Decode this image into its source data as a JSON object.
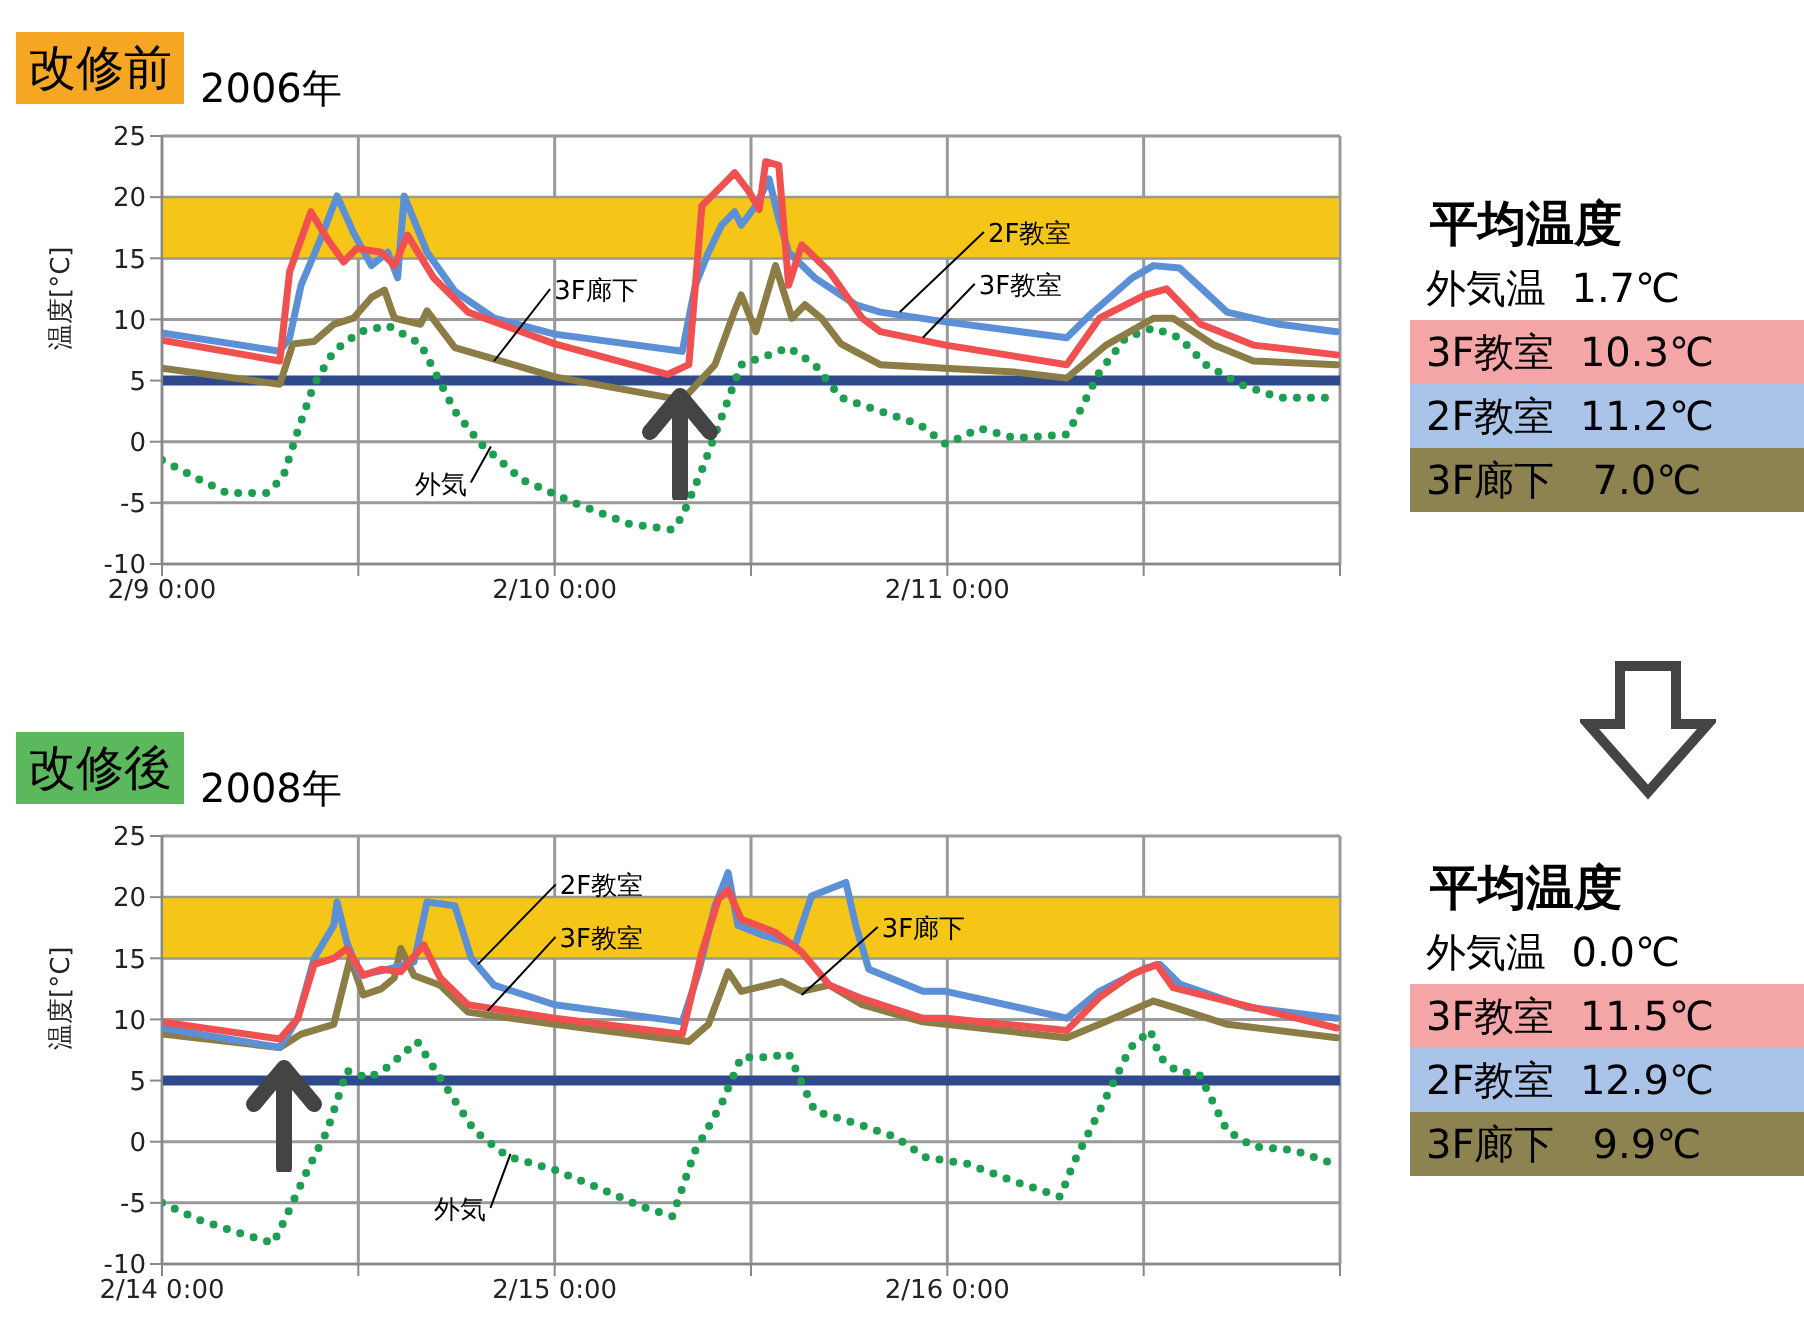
{
  "chart_data": [
    {
      "type": "line",
      "title": "改修前",
      "subtitle": "2006年",
      "ylabel": "温度[°C]",
      "xlim": [
        "2006-02-09T00:00",
        "2006-02-12T00:00"
      ],
      "xticks": [
        {
          "value": "2006-02-09T00:00",
          "label": "2/9 0:00"
        },
        {
          "value": "2006-02-09T12:00",
          "label": null
        },
        {
          "value": "2006-02-10T00:00",
          "label": "2/10 0:00"
        },
        {
          "value": "2006-02-10T12:00",
          "label": null
        },
        {
          "value": "2006-02-11T00:00",
          "label": "2/11 0:00"
        },
        {
          "value": "2006-02-11T12:00",
          "label": null
        },
        {
          "value": "2006-02-12T00:00",
          "label": null
        }
      ],
      "ylim": [
        -10,
        25
      ],
      "yticks": [
        -10,
        -5,
        0,
        5,
        10,
        15,
        20,
        25
      ],
      "grid": true,
      "legend": false,
      "marker": "none",
      "bands": [
        {
          "axis": "y",
          "from": 15,
          "to": 20,
          "color": "#f5c518"
        }
      ],
      "ref_lines": [
        {
          "axis": "y",
          "value": 5,
          "color": "#2e4a8c"
        }
      ],
      "series": [
        {
          "color": "#1e9e50",
          "line_style": "dotted",
          "x": [
            "2006-02-09T00:00",
            "2006-02-09T02:18",
            "2006-02-09T04:00",
            "2006-02-09T06:24",
            "2006-02-09T07:24",
            "2006-02-09T08:18",
            "2006-02-09T09:18",
            "2006-02-09T10:30",
            "2006-02-09T12:06",
            "2006-02-09T13:48",
            "2006-02-09T15:48",
            "2006-02-09T17:54",
            "2006-02-09T19:30",
            "2006-02-09T22:00",
            "2006-02-10T01:12",
            "2006-02-10T04:30",
            "2006-02-10T07:12",
            "2006-02-10T07:48",
            "2006-02-10T09:00",
            "2006-02-10T10:12",
            "2006-02-10T11:24",
            "2006-02-10T13:06",
            "2006-02-10T14:18",
            "2006-02-10T15:54",
            "2006-02-10T17:30",
            "2006-02-10T19:54",
            "2006-02-10T22:18",
            "2006-02-10T23:54",
            "2006-02-11T02:00",
            "2006-02-11T04:06",
            "2006-02-11T07:18",
            "2006-02-11T08:06",
            "2006-02-11T09:18",
            "2006-02-11T10:54",
            "2006-02-11T12:36",
            "2006-02-11T14:12",
            "2006-02-11T15:48",
            "2006-02-11T17:54",
            "2006-02-11T20:18",
            "2006-02-11T23:36"
          ],
          "values": [
            -1.5,
            -3.1,
            -4.2,
            -4.2,
            -2.9,
            0.9,
            4.7,
            7.4,
            9,
            9.5,
            8,
            2.5,
            -0.2,
            -3.1,
            -5,
            -6.7,
            -7.2,
            -6.1,
            -2.3,
            2,
            6.3,
            7.1,
            7.7,
            6.3,
            3.6,
            2.5,
            1.4,
            -0.2,
            1.1,
            0.3,
            0.6,
            2.5,
            5.7,
            8.5,
            9.3,
            8.5,
            6.3,
            4.7,
            3.6,
            3.6
          ]
        },
        {
          "color": "#8b7d45",
          "line_style": "solid",
          "x": [
            "2006-02-09T00:00",
            "2006-02-09T07:12",
            "2006-02-09T08:00",
            "2006-02-09T09:18",
            "2006-02-09T10:30",
            "2006-02-09T11:42",
            "2006-02-09T12:48",
            "2006-02-09T13:36",
            "2006-02-09T14:12",
            "2006-02-09T15:48",
            "2006-02-09T16:12",
            "2006-02-09T17:54",
            "2006-02-10T00:00",
            "2006-02-10T07:48",
            "2006-02-10T09:48",
            "2006-02-10T11:00",
            "2006-02-10T11:24",
            "2006-02-10T12:18",
            "2006-02-10T13:30",
            "2006-02-10T14:30",
            "2006-02-10T15:18",
            "2006-02-10T16:18",
            "2006-02-10T17:30",
            "2006-02-10T19:54",
            "2006-02-11T04:06",
            "2006-02-11T07:18",
            "2006-02-11T09:42",
            "2006-02-11T12:36",
            "2006-02-11T13:48",
            "2006-02-11T16:18",
            "2006-02-11T18:42",
            "2006-02-11T23:48"
          ],
          "values": [
            6,
            4.7,
            8,
            8.2,
            9.6,
            10.1,
            11.8,
            12.4,
            10.1,
            9.6,
            10.7,
            7.7,
            5.3,
            3.4,
            6.3,
            10.7,
            12,
            9,
            14.4,
            10.1,
            11.2,
            10.1,
            8,
            6.3,
            5.7,
            5.2,
            7.9,
            10.1,
            10.1,
            7.9,
            6.6,
            6.3
          ]
        },
        {
          "color": "#5b8fd6",
          "line_style": "solid",
          "x": [
            "2006-02-09T00:00",
            "2006-02-09T07:12",
            "2006-02-09T07:48",
            "2006-02-09T08:30",
            "2006-02-09T09:42",
            "2006-02-09T10:42",
            "2006-02-09T11:42",
            "2006-02-09T12:48",
            "2006-02-09T13:48",
            "2006-02-09T14:24",
            "2006-02-09T14:48",
            "2006-02-09T16:12",
            "2006-02-09T17:54",
            "2006-02-09T20:18",
            "2006-02-10T00:00",
            "2006-02-10T07:48",
            "2006-02-10T08:36",
            "2006-02-10T09:24",
            "2006-02-10T10:12",
            "2006-02-10T11:00",
            "2006-02-10T11:24",
            "2006-02-10T12:18",
            "2006-02-10T13:06",
            "2006-02-10T13:42",
            "2006-02-10T14:18",
            "2006-02-10T15:54",
            "2006-02-10T18:24",
            "2006-02-10T19:54",
            "2006-02-10T23:54",
            "2006-02-11T07:18",
            "2006-02-11T08:54",
            "2006-02-11T11:18",
            "2006-02-11T12:36",
            "2006-02-11T14:12",
            "2006-02-11T17:06",
            "2006-02-11T20:18",
            "2006-02-11T23:48"
          ],
          "values": [
            8.9,
            7.4,
            8.5,
            12.8,
            16.6,
            20.1,
            17.1,
            14.4,
            15.5,
            13.4,
            20.1,
            15.5,
            12.3,
            10.1,
            8.8,
            7.4,
            12.8,
            15.5,
            17.7,
            18.8,
            17.7,
            19.3,
            21.5,
            18.2,
            15.5,
            13.4,
            11.2,
            10.6,
            9.8,
            8.5,
            10.6,
            13.4,
            14.4,
            14.2,
            10.6,
            9.6,
            9
          ]
        },
        {
          "color": "#f0504f",
          "line_style": "solid",
          "x": [
            "2006-02-09T00:00",
            "2006-02-09T07:12",
            "2006-02-09T07:48",
            "2006-02-09T09:06",
            "2006-02-09T10:06",
            "2006-02-09T11:06",
            "2006-02-09T11:54",
            "2006-02-09T13:24",
            "2006-02-09T14:12",
            "2006-02-09T15:00",
            "2006-02-09T16:36",
            "2006-02-09T18:42",
            "2006-02-10T00:00",
            "2006-02-10T06:54",
            "2006-02-10T08:12",
            "2006-02-10T09:00",
            "2006-02-10T10:12",
            "2006-02-10T11:00",
            "2006-02-10T11:54",
            "2006-02-10T12:30",
            "2006-02-10T12:54",
            "2006-02-10T13:42",
            "2006-02-10T14:18",
            "2006-02-10T15:06",
            "2006-02-10T16:48",
            "2006-02-10T18:48",
            "2006-02-10T19:54",
            "2006-02-10T23:54",
            "2006-02-11T07:18",
            "2006-02-11T09:18",
            "2006-02-11T12:06",
            "2006-02-11T13:24",
            "2006-02-11T15:30",
            "2006-02-11T18:42",
            "2006-02-11T23:48"
          ],
          "values": [
            8.3,
            6.6,
            13.9,
            18.8,
            16.6,
            14.7,
            15.8,
            15.5,
            14.4,
            16.9,
            13.4,
            10.6,
            8,
            5.5,
            6.3,
            19.3,
            20.9,
            22,
            20.4,
            19,
            22.9,
            22.6,
            12.8,
            16.1,
            13.9,
            10.1,
            9,
            7.9,
            6.3,
            10.1,
            12,
            12.5,
            9.6,
            7.9,
            7.1
          ]
        }
      ],
      "annotations": [
        {
          "text": "3F廊下",
          "x": "2006-02-09T20:18",
          "y": 6.6
        },
        {
          "text": "外気",
          "x": "2006-02-09T20:06",
          "y": -0.4
        },
        {
          "text": "2F教室",
          "x": "2006-02-10T21:06",
          "y": 10.6
        },
        {
          "text": "3F教室",
          "x": "2006-02-10T22:30",
          "y": 8.5
        }
      ]
    },
    {
      "type": "other",
      "title": "平均温度",
      "annotations": [
        "外気温  1.7℃",
        "3F教室  10.3℃",
        "2F教室  11.2℃",
        "3F廊下   7.0℃"
      ],
      "colors": [
        "#ffffff",
        "#f4a6a6",
        "#a9c4e8",
        "#8c8350"
      ]
    },
    {
      "type": "line",
      "title": "改修後",
      "subtitle": "2008年",
      "ylabel": "温度[°C]",
      "xlim": [
        "2008-02-14T00:00",
        "2008-02-17T00:00"
      ],
      "xticks": [
        {
          "value": "2008-02-14T00:00",
          "label": "2/14 0:00"
        },
        {
          "value": "2008-02-14T12:00",
          "label": null
        },
        {
          "value": "2008-02-15T00:00",
          "label": "2/15 0:00"
        },
        {
          "value": "2008-02-15T12:00",
          "label": null
        },
        {
          "value": "2008-02-16T00:00",
          "label": "2/16 0:00"
        },
        {
          "value": "2008-02-16T12:00",
          "label": null
        },
        {
          "value": "2008-02-17T00:00",
          "label": null
        }
      ],
      "ylim": [
        -10,
        25
      ],
      "yticks": [
        -10,
        -5,
        0,
        5,
        10,
        15,
        20,
        25
      ],
      "grid": true,
      "legend": false,
      "marker": "none",
      "bands": [
        {
          "axis": "y",
          "from": 15,
          "to": 20,
          "color": "#f5c518"
        }
      ],
      "ref_lines": [
        {
          "axis": "y",
          "value": 5,
          "color": "#2e4a8c"
        }
      ],
      "series": [
        {
          "color": "#1e9e50",
          "line_style": "dotted",
          "x": [
            "2008-02-14T00:00",
            "2008-02-14T02:18",
            "2008-02-14T04:48",
            "2008-02-14T06:48",
            "2008-02-14T07:36",
            "2008-02-14T08:54",
            "2008-02-14T10:06",
            "2008-02-14T11:18",
            "2008-02-14T12:36",
            "2008-02-14T13:48",
            "2008-02-14T15:36",
            "2008-02-14T17:00",
            "2008-02-14T19:06",
            "2008-02-14T21:06",
            "2008-02-15T00:00",
            "2008-02-15T02:54",
            "2008-02-15T05:18",
            "2008-02-15T07:12",
            "2008-02-15T08:36",
            "2008-02-15T10:12",
            "2008-02-15T11:24",
            "2008-02-15T13:06",
            "2008-02-15T14:18",
            "2008-02-15T15:54",
            "2008-02-15T18:24",
            "2008-02-15T20:48",
            "2008-02-15T22:42",
            "2008-02-16T01:12",
            "2008-02-16T04:00",
            "2008-02-16T06:54",
            "2008-02-16T07:42",
            "2008-02-16T09:42",
            "2008-02-16T11:12",
            "2008-02-16T12:24",
            "2008-02-16T13:00",
            "2008-02-16T14:00",
            "2008-02-16T15:24",
            "2008-02-16T17:06",
            "2008-02-16T18:42",
            "2008-02-16T21:12",
            "2008-02-16T23:36"
          ],
          "values": [
            -5,
            -6.4,
            -7.5,
            -8.3,
            -6.1,
            -2.3,
            0.9,
            5.8,
            5.2,
            6.1,
            8.2,
            5.2,
            0.9,
            -1.2,
            -2.3,
            -3.9,
            -5.3,
            -6.1,
            -0.7,
            3.1,
            6.9,
            6.9,
            7.2,
            2.5,
            1.5,
            0.4,
            -1.3,
            -1.8,
            -3.2,
            -4.5,
            -1.8,
            3.6,
            7.7,
            9.1,
            6.9,
            5.8,
            5.5,
            0.9,
            -0.4,
            -0.7,
            -1.8
          ]
        },
        {
          "color": "#8b7d45",
          "line_style": "solid",
          "x": [
            "2008-02-14T00:00",
            "2008-02-14T07:12",
            "2008-02-14T08:30",
            "2008-02-14T10:30",
            "2008-02-14T11:30",
            "2008-02-14T12:18",
            "2008-02-14T13:24",
            "2008-02-14T14:12",
            "2008-02-14T14:36",
            "2008-02-14T15:24",
            "2008-02-14T17:00",
            "2008-02-14T18:42",
            "2008-02-15T00:00",
            "2008-02-15T08:12",
            "2008-02-15T09:24",
            "2008-02-15T10:36",
            "2008-02-15T11:24",
            "2008-02-15T13:54",
            "2008-02-15T15:06",
            "2008-02-15T16:48",
            "2008-02-15T18:48",
            "2008-02-15T22:30",
            "2008-02-15T23:54",
            "2008-02-16T07:18",
            "2008-02-16T09:18",
            "2008-02-16T12:36",
            "2008-02-16T13:48",
            "2008-02-16T17:06",
            "2008-02-16T23:48"
          ],
          "values": [
            8.8,
            7.7,
            8.8,
            9.6,
            15,
            12,
            12.5,
            13.4,
            15.8,
            13.6,
            12.8,
            10.6,
            9.6,
            8.2,
            9.6,
            13.9,
            12.3,
            13.1,
            12.3,
            12.8,
            11.2,
            9.8,
            9.6,
            8.5,
            9.6,
            11.5,
            11,
            9.6,
            8.5
          ]
        },
        {
          "color": "#5b8fd6",
          "line_style": "solid",
          "x": [
            "2008-02-14T00:00",
            "2008-02-14T07:12",
            "2008-02-14T08:18",
            "2008-02-14T09:18",
            "2008-02-14T10:30",
            "2008-02-14T10:42",
            "2008-02-14T11:18",
            "2008-02-14T12:06",
            "2008-02-14T13:48",
            "2008-02-14T15:24",
            "2008-02-14T16:12",
            "2008-02-14T17:54",
            "2008-02-14T18:54",
            "2008-02-14T20:18",
            "2008-02-15T00:00",
            "2008-02-15T07:48",
            "2008-02-15T08:48",
            "2008-02-15T09:48",
            "2008-02-15T10:36",
            "2008-02-15T11:12",
            "2008-02-15T12:42",
            "2008-02-15T14:42",
            "2008-02-15T15:42",
            "2008-02-15T17:48",
            "2008-02-15T18:24",
            "2008-02-15T19:12",
            "2008-02-15T22:30",
            "2008-02-15T23:54",
            "2008-02-16T07:18",
            "2008-02-16T09:18",
            "2008-02-16T12:06",
            "2008-02-16T13:00",
            "2008-02-16T14:12",
            "2008-02-16T18:18",
            "2008-02-16T23:48"
          ],
          "values": [
            9.3,
            7.7,
            10.1,
            15,
            17.7,
            19.6,
            16.3,
            13.6,
            14.1,
            14.7,
            19.6,
            19.3,
            15,
            12.8,
            11.2,
            9.8,
            13.9,
            19.3,
            22,
            17.7,
            16.9,
            16.1,
            20.1,
            21.2,
            17.7,
            14.1,
            12.3,
            12.3,
            10.1,
            12.3,
            14.2,
            14.5,
            12.9,
            11,
            10.1
          ]
        },
        {
          "color": "#f0504f",
          "line_style": "solid",
          "x": [
            "2008-02-14T00:00",
            "2008-02-14T07:12",
            "2008-02-14T08:18",
            "2008-02-14T09:18",
            "2008-02-14T10:30",
            "2008-02-14T11:18",
            "2008-02-14T12:18",
            "2008-02-14T13:24",
            "2008-02-14T14:36",
            "2008-02-14T16:00",
            "2008-02-14T17:00",
            "2008-02-14T18:42",
            "2008-02-15T00:00",
            "2008-02-15T07:48",
            "2008-02-15T09:00",
            "2008-02-15T10:00",
            "2008-02-15T10:36",
            "2008-02-15T11:24",
            "2008-02-15T13:30",
            "2008-02-15T15:06",
            "2008-02-15T16:48",
            "2008-02-15T18:48",
            "2008-02-15T22:30",
            "2008-02-15T23:54",
            "2008-02-16T07:18",
            "2008-02-16T09:18",
            "2008-02-16T11:18",
            "2008-02-16T12:48",
            "2008-02-16T13:48",
            "2008-02-16T17:06",
            "2008-02-16T23:48"
          ],
          "values": [
            9.8,
            8.4,
            10.1,
            14.5,
            15,
            15.8,
            13.6,
            14.1,
            13.9,
            16.1,
            13.4,
            11.2,
            10.1,
            8.8,
            15.5,
            19.8,
            20.6,
            18.2,
            17.1,
            15.5,
            12.8,
            11.7,
            10.1,
            10.1,
            9.1,
            11.8,
            13.7,
            14.5,
            12.6,
            11.5,
            9.3
          ]
        }
      ],
      "annotations": [
        {
          "text": "2F教室",
          "x": "2008-02-14T19:18",
          "y": 14.5
        },
        {
          "text": "3F教室",
          "x": "2008-02-14T19:54",
          "y": 10.7
        },
        {
          "text": "外気",
          "x": "2008-02-14T21:18",
          "y": -1
        },
        {
          "text": "3F廊下",
          "x": "2008-02-15T15:06",
          "y": 12
        }
      ]
    },
    {
      "type": "other",
      "title": "平均温度",
      "annotations": [
        "外気温  0.0℃",
        "3F教室  11.5℃",
        "2F教室  12.9℃",
        "3F廊下   9.9℃"
      ],
      "colors": [
        "#ffffff",
        "#f4a6a6",
        "#a9c4e8",
        "#8c8350"
      ]
    }
  ]
}
